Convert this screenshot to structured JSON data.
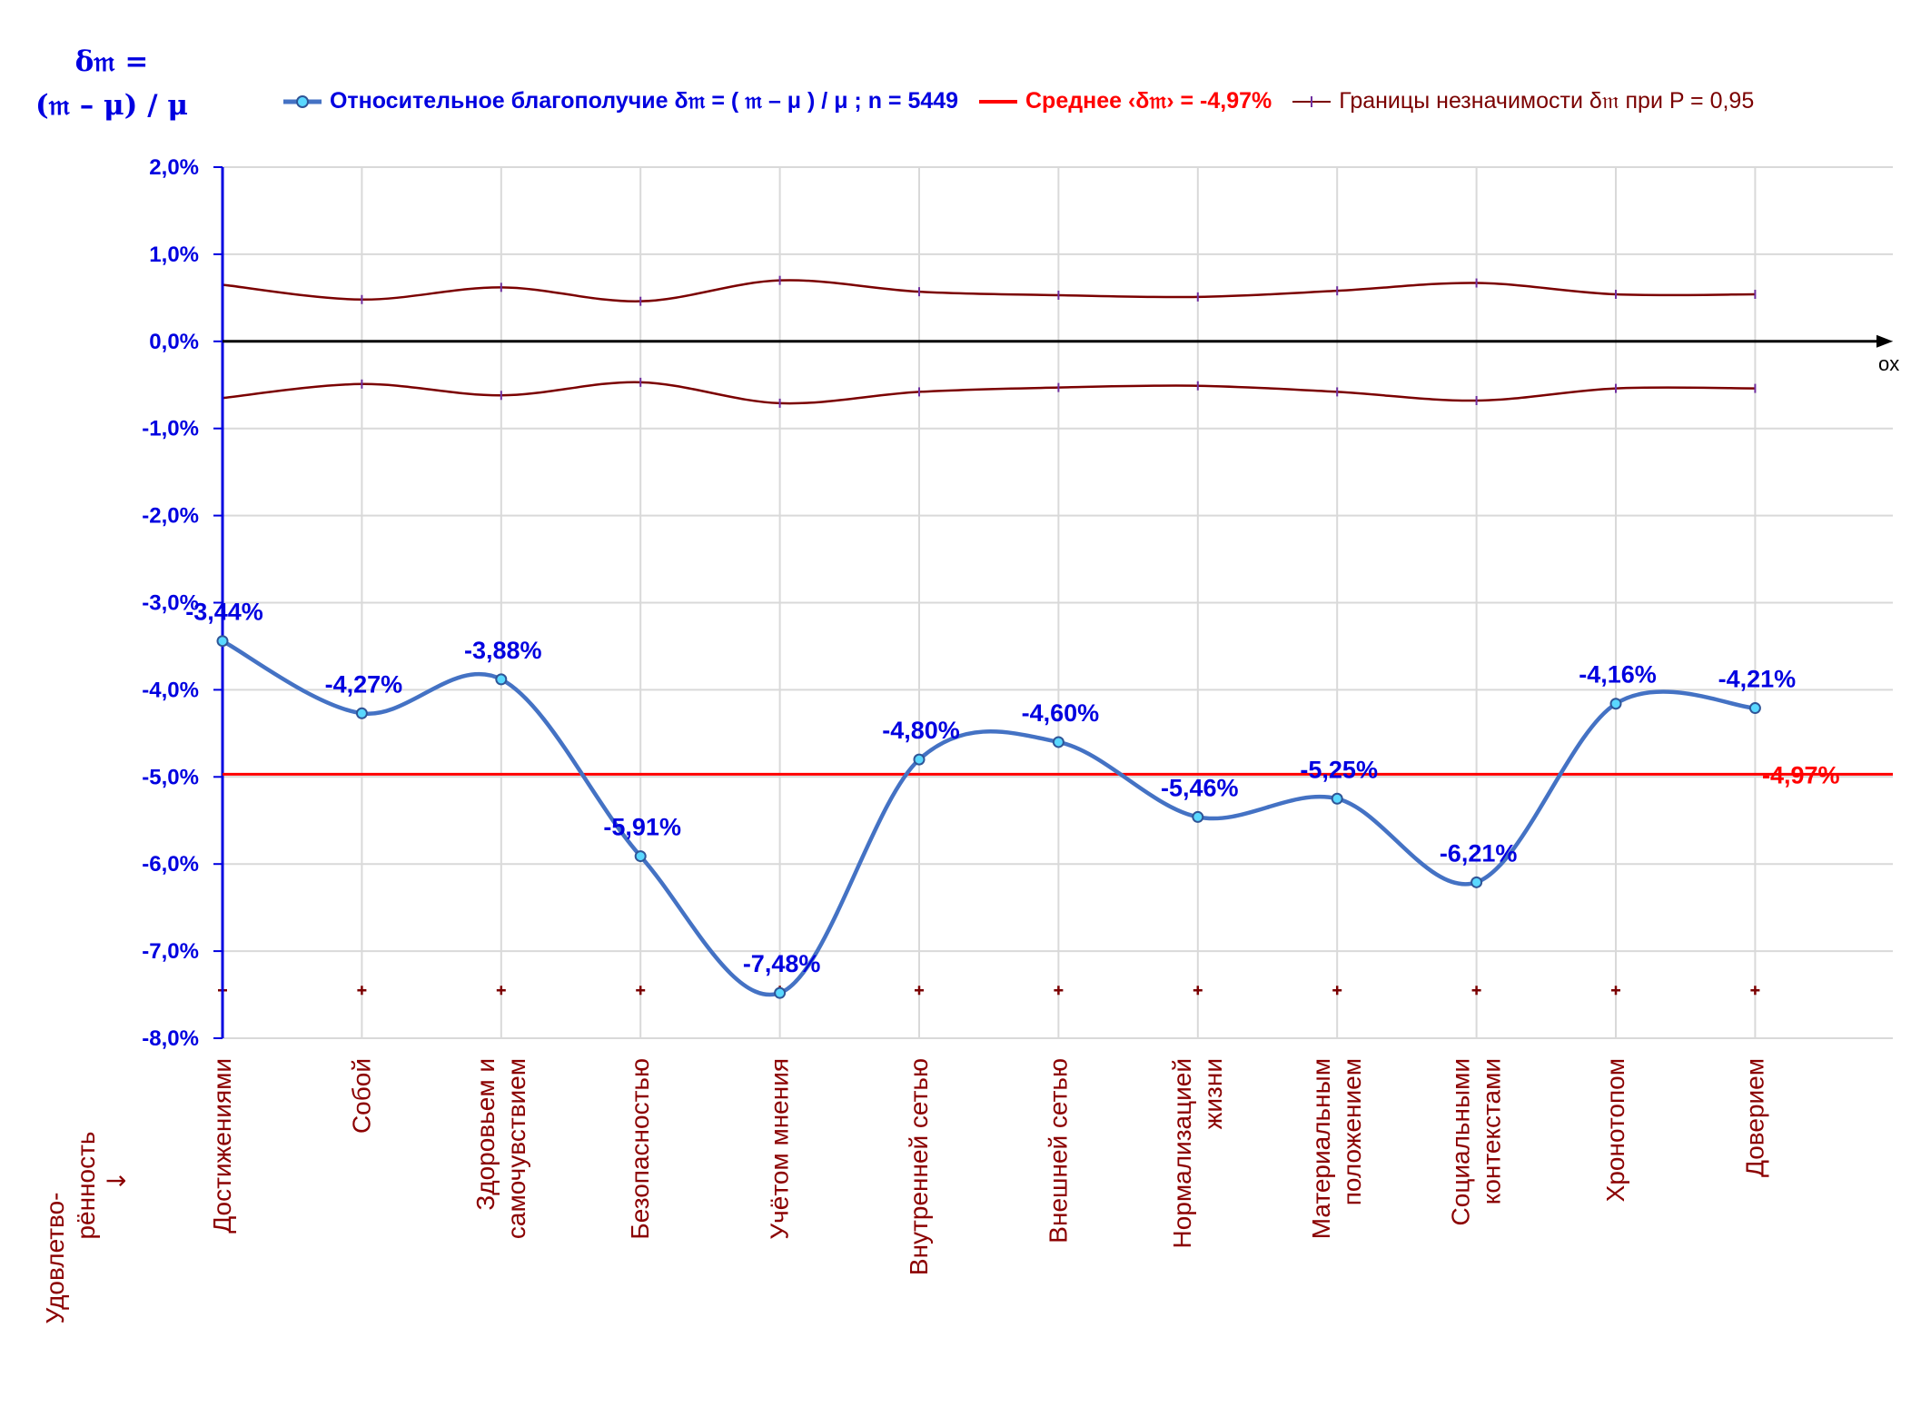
{
  "y_axis_title": {
    "line1": "δ𝔪 =",
    "line2": "(𝔪 – μ) / μ"
  },
  "x_axis_side_label": {
    "line1": "Удовлетво-",
    "line2": "рённость",
    "arrow": "↓"
  },
  "axis_name": "ox",
  "legend": {
    "series_main": "Относительное благополучие δ𝔪 = ( 𝔪 – μ ) / μ ; n = 5449",
    "series_mean": "Среднее ‹δ𝔪› = -4,97%",
    "series_bounds": "Границы незначимости δ𝔪 при P = 0,95"
  },
  "colors": {
    "main": "#4472c4",
    "mean": "#ff0000",
    "bounds": "#7b0000",
    "axis": "#0000e0",
    "labels": "#0000e0",
    "category": "#8b0000",
    "marker": "#5ad8ff"
  },
  "chart_data": {
    "type": "line",
    "categories": [
      [
        "Достижениями"
      ],
      [
        "Собой"
      ],
      [
        "Здоровьем и",
        "самочувствием"
      ],
      [
        "Безопасностью"
      ],
      [
        "Учётом мнения"
      ],
      [
        "Внутренней сетью"
      ],
      [
        "Внешней сетью"
      ],
      [
        "Нормализацией",
        "жизни"
      ],
      [
        "Материальным",
        "положением"
      ],
      [
        "Социальными",
        "контекстами"
      ],
      [
        "Хронотопом"
      ],
      [
        "Доверием"
      ]
    ],
    "series": [
      {
        "name": "Относительное благополучие δ𝔪 = ( 𝔪 – μ ) / μ ; n = 5449",
        "values": [
          -3.44,
          -4.27,
          -3.88,
          -5.91,
          -7.48,
          -4.8,
          -4.6,
          -5.46,
          -5.25,
          -6.21,
          -4.16,
          -4.21
        ],
        "labels": [
          "-3,44%",
          "-4,27%",
          "-3,88%",
          "-5,91%",
          "-7,48%",
          "-4,80%",
          "-4,60%",
          "-5,46%",
          "-5,25%",
          "-6,21%",
          "-4,16%",
          "-4,21%"
        ]
      },
      {
        "name": "Среднее ‹δ𝔪› = -4,97%",
        "value": -4.97,
        "label": "-4,97%"
      },
      {
        "name": "Границы незначимости δ𝔪 при P = 0,95",
        "upper": [
          0.65,
          0.48,
          0.62,
          0.46,
          0.7,
          0.57,
          0.53,
          0.51,
          0.58,
          0.67,
          0.54,
          0.54
        ],
        "lower": [
          -0.65,
          -0.49,
          -0.62,
          -0.47,
          -0.71,
          -0.58,
          -0.53,
          -0.51,
          -0.58,
          -0.68,
          -0.54,
          -0.54
        ],
        "base": -7.45
      }
    ],
    "ylim": [
      -8,
      2
    ],
    "yticks": [
      2,
      1,
      0,
      -1,
      -2,
      -3,
      -4,
      -5,
      -6,
      -7,
      -8
    ],
    "ytick_labels": [
      "2,0%",
      "1,0%",
      "0,0%",
      "-1,0%",
      "-2,0%",
      "-3,0%",
      "-4,0%",
      "-5,0%",
      "-6,0%",
      "-7,0%",
      "-8,0%"
    ],
    "grid": true
  }
}
